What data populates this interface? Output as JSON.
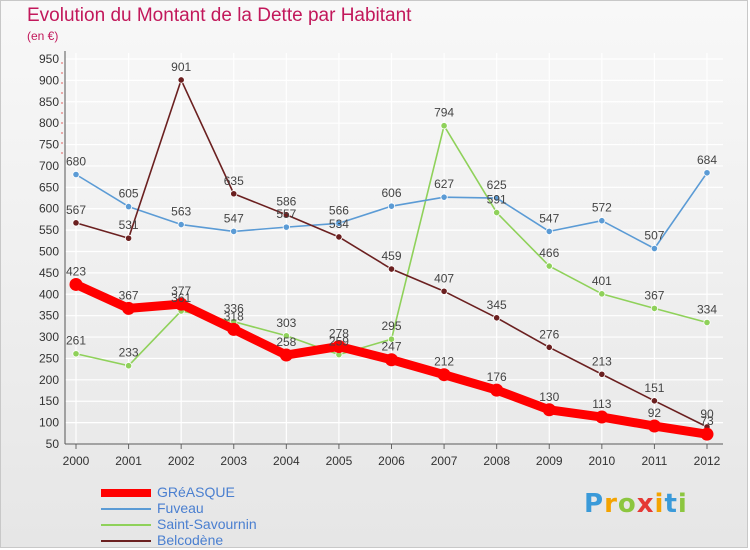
{
  "chart_data": {
    "type": "line",
    "title": "Evolution du Montant de la Dette par Habitant",
    "ylabel": "(en €)",
    "xlabel": "",
    "x": [
      "2000",
      "2001",
      "2002",
      "2003",
      "2004",
      "2005",
      "2006",
      "2007",
      "2008",
      "2009",
      "2010",
      "2011",
      "2012"
    ],
    "ylim": [
      50,
      950
    ],
    "yticks": [
      50,
      100,
      150,
      200,
      250,
      300,
      350,
      400,
      450,
      500,
      550,
      600,
      650,
      700,
      750,
      800,
      850,
      900,
      950
    ],
    "grid": true,
    "legend_position": "bottom-left",
    "series": [
      {
        "name": "GRéASQUE",
        "color": "#ff0000",
        "values": [
          423,
          367,
          377,
          318,
          258,
          278,
          247,
          212,
          176,
          130,
          113,
          92,
          73
        ]
      },
      {
        "name": "Fuveau",
        "color": "#5b9bd5",
        "values": [
          680,
          605,
          563,
          547,
          557,
          566,
          606,
          627,
          625,
          547,
          572,
          507,
          684
        ]
      },
      {
        "name": "Saint-Savournin",
        "color": "#8fd15a",
        "values": [
          261,
          233,
          361,
          336,
          303,
          259,
          295,
          794,
          591,
          466,
          401,
          367,
          334
        ]
      },
      {
        "name": "Belcodène",
        "color": "#6b2020",
        "values": [
          567,
          531,
          901,
          635,
          586,
          534,
          459,
          407,
          345,
          276,
          213,
          151,
          90
        ]
      }
    ]
  },
  "brand": {
    "letters": [
      "P",
      "r",
      "o",
      "x",
      "i",
      "t",
      "i"
    ],
    "colors": [
      "#3a9ad9",
      "#f4a300",
      "#8cc63f",
      "#e53935",
      "#f4a300",
      "#3a9ad9",
      "#8cc63f"
    ]
  }
}
